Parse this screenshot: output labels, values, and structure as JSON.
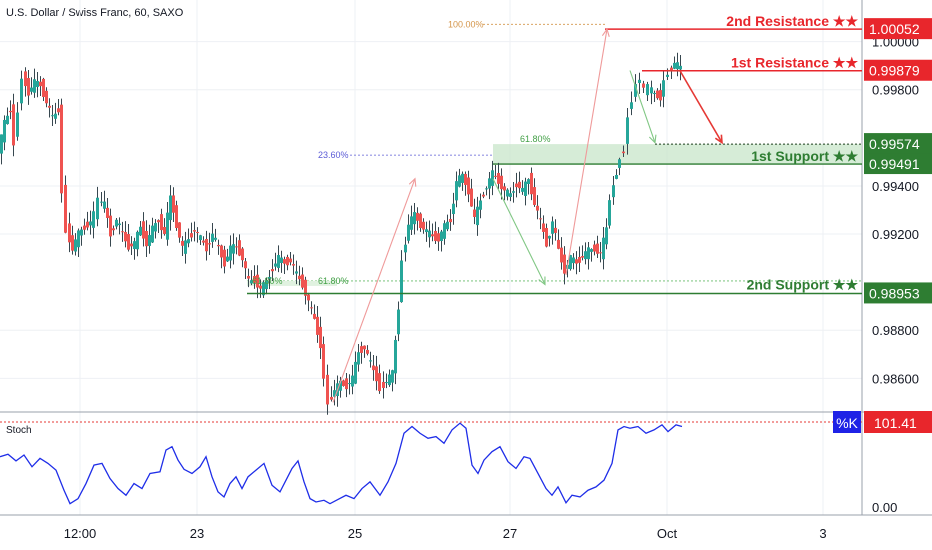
{
  "header": {
    "symbol_title": "U.S. Dollar / Swiss Franc, 60, SAXO"
  },
  "colors": {
    "up": "#26a69a",
    "down": "#ef5350",
    "wick": "#37474f",
    "resistance": "#e8262c",
    "support": "#2e7d32",
    "zone_fill": "#c8e6c9",
    "stoch": "#1f2ee8",
    "stoch_badge": "#1f22e6",
    "fib_purple": "#5b5bd6",
    "fib_orange": "#d4954a"
  },
  "chart_data": [
    {
      "type": "candlestick",
      "title": "U.S. Dollar / Swiss Franc, 60, SAXO",
      "ylim": [
        0.9846,
        1.0009
      ],
      "y_ticks": [
        0.986,
        0.988,
        0.992,
        0.994,
        0.998,
        1.0
      ],
      "y_tick_labels": [
        "0.98600",
        "0.98800",
        "0.99200",
        "0.99400",
        "0.99800",
        "1.00000"
      ],
      "x_ticks": [
        "12:00",
        "23",
        "25",
        "27",
        "Oct",
        "3"
      ],
      "grid": true,
      "levels": [
        {
          "label": "2nd Resistance ★★",
          "price": 1.00052,
          "price_label": "1.00052",
          "role": "resistance"
        },
        {
          "label": "1st Resistance ★★",
          "price": 0.99879,
          "price_label": "0.99879",
          "role": "resistance"
        },
        {
          "label": "1st Support ★★",
          "price": 0.99574,
          "price_label": "0.99574",
          "role": "support_zone_top"
        },
        {
          "label": "",
          "price": 0.99491,
          "price_label": "0.99491",
          "role": "support_zone_bottom"
        },
        {
          "label": "2nd Support ★★",
          "price": 0.98953,
          "price_label": "0.98953",
          "role": "support"
        }
      ],
      "fib_labels": [
        {
          "text": "100.00%",
          "price": 1.00072
        },
        {
          "text": "23.60%",
          "price": 0.99528
        },
        {
          "text": "61.80%",
          "price": 0.99575
        },
        {
          "text": "61.80%",
          "price": 0.99005
        },
        {
          "text": "61.80%",
          "price": 0.99005
        }
      ],
      "close_points": [
        [
          0,
          0.9955
        ],
        [
          6,
          0.9966
        ],
        [
          12,
          0.9972
        ],
        [
          16,
          0.9958
        ],
        [
          20,
          0.9972
        ],
        [
          24,
          0.9986
        ],
        [
          30,
          0.9979
        ],
        [
          36,
          0.9983
        ],
        [
          42,
          0.9982
        ],
        [
          48,
          0.9975
        ],
        [
          54,
          0.9968
        ],
        [
          60,
          0.9972
        ],
        [
          64,
          0.9938
        ],
        [
          68,
          0.9922
        ],
        [
          74,
          0.9914
        ],
        [
          80,
          0.992
        ],
        [
          86,
          0.9923
        ],
        [
          92,
          0.9925
        ],
        [
          96,
          0.9928
        ],
        [
          100,
          0.9934
        ],
        [
          106,
          0.9932
        ],
        [
          112,
          0.992
        ],
        [
          118,
          0.9926
        ],
        [
          124,
          0.992
        ],
        [
          130,
          0.9915
        ],
        [
          136,
          0.9916
        ],
        [
          142,
          0.9923
        ],
        [
          148,
          0.9916
        ],
        [
          154,
          0.9922
        ],
        [
          160,
          0.9926
        ],
        [
          166,
          0.992
        ],
        [
          172,
          0.9935
        ],
        [
          178,
          0.9924
        ],
        [
          184,
          0.9914
        ],
        [
          190,
          0.9918
        ],
        [
          196,
          0.9922
        ],
        [
          202,
          0.9918
        ],
        [
          208,
          0.9914
        ],
        [
          214,
          0.992
        ],
        [
          220,
          0.9914
        ],
        [
          226,
          0.9908
        ],
        [
          232,
          0.9914
        ],
        [
          238,
          0.9915
        ],
        [
          244,
          0.991
        ],
        [
          250,
          0.99
        ],
        [
          256,
          0.9901
        ],
        [
          262,
          0.9897
        ],
        [
          268,
          0.99
        ],
        [
          274,
          0.9906
        ],
        [
          280,
          0.991
        ],
        [
          286,
          0.9908
        ],
        [
          292,
          0.9909
        ],
        [
          298,
          0.9903
        ],
        [
          304,
          0.9899
        ],
        [
          310,
          0.9892
        ],
        [
          316,
          0.9884
        ],
        [
          322,
          0.9874
        ],
        [
          326,
          0.986
        ],
        [
          330,
          0.985
        ],
        [
          336,
          0.9855
        ],
        [
          342,
          0.9858
        ],
        [
          348,
          0.9857
        ],
        [
          354,
          0.986
        ],
        [
          360,
          0.9871
        ],
        [
          366,
          0.9873
        ],
        [
          372,
          0.9866
        ],
        [
          378,
          0.986
        ],
        [
          382,
          0.9856
        ],
        [
          388,
          0.9859
        ],
        [
          394,
          0.9862
        ],
        [
          400,
          0.989
        ],
        [
          404,
          0.991
        ],
        [
          410,
          0.9924
        ],
        [
          416,
          0.9928
        ],
        [
          422,
          0.9924
        ],
        [
          428,
          0.9921
        ],
        [
          434,
          0.9919
        ],
        [
          440,
          0.9918
        ],
        [
          446,
          0.9923
        ],
        [
          452,
          0.9926
        ],
        [
          458,
          0.9942
        ],
        [
          464,
          0.9944
        ],
        [
          470,
          0.9938
        ],
        [
          476,
          0.9926
        ],
        [
          482,
          0.9934
        ],
        [
          488,
          0.994
        ],
        [
          494,
          0.9945
        ],
        [
          500,
          0.9942
        ],
        [
          506,
          0.9938
        ],
        [
          512,
          0.9936
        ],
        [
          518,
          0.9941
        ],
        [
          524,
          0.9938
        ],
        [
          530,
          0.9943
        ],
        [
          536,
          0.9933
        ],
        [
          542,
          0.9925
        ],
        [
          548,
          0.9916
        ],
        [
          554,
          0.9925
        ],
        [
          560,
          0.9913
        ],
        [
          566,
          0.9905
        ],
        [
          572,
          0.991
        ],
        [
          578,
          0.9908
        ],
        [
          584,
          0.9911
        ],
        [
          590,
          0.9913
        ],
        [
          596,
          0.9914
        ],
        [
          602,
          0.9912
        ],
        [
          608,
          0.9922
        ],
        [
          612,
          0.9935
        ],
        [
          618,
          0.9946
        ],
        [
          622,
          0.9952
        ],
        [
          626,
          0.9955
        ],
        [
          630,
          0.997
        ],
        [
          634,
          0.9976
        ],
        [
          638,
          0.9983
        ],
        [
          642,
          0.9984
        ],
        [
          646,
          0.998
        ],
        [
          650,
          0.9981
        ],
        [
          656,
          0.9978
        ],
        [
          662,
          0.9977
        ],
        [
          666,
          0.9984
        ],
        [
          670,
          0.9987
        ],
        [
          676,
          0.9991
        ],
        [
          682,
          0.9989
        ]
      ],
      "projection_arrows": [
        {
          "color": "red",
          "points": [
            [
              333,
              0.985
            ],
            [
              415,
              0.9943
            ]
          ]
        },
        {
          "color": "red",
          "points": [
            [
              566,
              0.9903
            ],
            [
              607,
              1.00052
            ]
          ]
        },
        {
          "color": "green",
          "points": [
            [
              493,
              0.9943
            ],
            [
              545,
              0.9899
            ]
          ]
        },
        {
          "color": "green",
          "points": [
            [
              630,
              0.9988
            ],
            [
              655,
              0.9958
            ]
          ]
        },
        {
          "color": "red",
          "points": [
            [
              680,
              0.99879
            ],
            [
              722,
              0.9958
            ]
          ]
        }
      ]
    },
    {
      "type": "line",
      "title": "Stoch",
      "badge": "%K",
      "value_label": "101.41",
      "bottom_label": "0.00",
      "ylim": [
        0,
        101.41
      ],
      "series": [
        {
          "values": [
            [
              0,
              60
            ],
            [
              8,
              63
            ],
            [
              16,
              55
            ],
            [
              24,
              62
            ],
            [
              32,
              48
            ],
            [
              40,
              58
            ],
            [
              48,
              52
            ],
            [
              56,
              44
            ],
            [
              64,
              20
            ],
            [
              70,
              4
            ],
            [
              78,
              10
            ],
            [
              86,
              28
            ],
            [
              94,
              50
            ],
            [
              102,
              52
            ],
            [
              110,
              34
            ],
            [
              118,
              22
            ],
            [
              126,
              14
            ],
            [
              134,
              28
            ],
            [
              142,
              22
            ],
            [
              150,
              40
            ],
            [
              160,
              42
            ],
            [
              166,
              68
            ],
            [
              172,
              72
            ],
            [
              178,
              56
            ],
            [
              184,
              45
            ],
            [
              192,
              40
            ],
            [
              200,
              48
            ],
            [
              206,
              60
            ],
            [
              212,
              36
            ],
            [
              218,
              18
            ],
            [
              224,
              12
            ],
            [
              230,
              28
            ],
            [
              236,
              36
            ],
            [
              242,
              22
            ],
            [
              248,
              36
            ],
            [
              256,
              44
            ],
            [
              264,
              52
            ],
            [
              272,
              26
            ],
            [
              280,
              18
            ],
            [
              286,
              32
            ],
            [
              292,
              46
            ],
            [
              298,
              55
            ],
            [
              304,
              30
            ],
            [
              310,
              10
            ],
            [
              316,
              6
            ],
            [
              324,
              8
            ],
            [
              330,
              4
            ],
            [
              338,
              9
            ],
            [
              346,
              14
            ],
            [
              354,
              10
            ],
            [
              362,
              22
            ],
            [
              370,
              30
            ],
            [
              380,
              14
            ],
            [
              388,
              30
            ],
            [
              396,
              52
            ],
            [
              404,
              88
            ],
            [
              412,
              96
            ],
            [
              420,
              88
            ],
            [
              428,
              82
            ],
            [
              436,
              84
            ],
            [
              444,
              76
            ],
            [
              452,
              92
            ],
            [
              460,
              100
            ],
            [
              466,
              94
            ],
            [
              472,
              50
            ],
            [
              478,
              40
            ],
            [
              484,
              56
            ],
            [
              492,
              66
            ],
            [
              500,
              72
            ],
            [
              508,
              54
            ],
            [
              516,
              46
            ],
            [
              524,
              60
            ],
            [
              530,
              58
            ],
            [
              538,
              40
            ],
            [
              546,
              22
            ],
            [
              552,
              14
            ],
            [
              558,
              24
            ],
            [
              566,
              5
            ],
            [
              572,
              14
            ],
            [
              580,
              12
            ],
            [
              588,
              20
            ],
            [
              596,
              24
            ],
            [
              604,
              32
            ],
            [
              612,
              52
            ],
            [
              618,
              92
            ],
            [
              624,
              96
            ],
            [
              630,
              94
            ],
            [
              638,
              96
            ],
            [
              646,
              88
            ],
            [
              654,
              92
            ],
            [
              662,
              98
            ],
            [
              668,
              90
            ],
            [
              676,
              98
            ],
            [
              682,
              96
            ]
          ]
        }
      ]
    }
  ]
}
